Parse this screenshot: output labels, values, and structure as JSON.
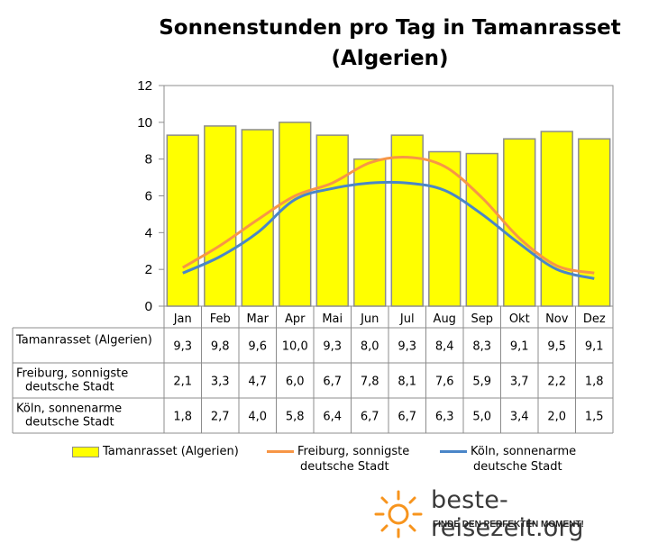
{
  "title_line1": "Sonnenstunden pro Tag in Tamanrasset",
  "title_line2": "(Algerien)",
  "brand": {
    "name": "beste-reisezeit.org",
    "tagline": "FINDE DEN PERFEKTEN MOMENT!"
  },
  "colors": {
    "bar_fill": "#ffff00",
    "bar_stroke": "#8c8c8c",
    "freiburg": "#f79646",
    "koeln": "#4a86c8",
    "logo": "#f7941d"
  },
  "chart_data": {
    "type": "bar",
    "categories": [
      "Jan",
      "Feb",
      "Mar",
      "Apr",
      "Mai",
      "Jun",
      "Jul",
      "Aug",
      "Sep",
      "Okt",
      "Nov",
      "Dez"
    ],
    "ylim": [
      0,
      12
    ],
    "yticks": [
      "0",
      "2",
      "4",
      "6",
      "8",
      "10",
      "12"
    ],
    "grid": false,
    "legend_position": "bottom",
    "series": [
      {
        "name": "Tamanrasset (Algerien)",
        "type": "bar",
        "values": [
          9.3,
          9.8,
          9.6,
          10.0,
          9.3,
          8.0,
          9.3,
          8.4,
          8.3,
          9.1,
          9.5,
          9.1
        ],
        "labels": [
          "9,3",
          "9,8",
          "9,6",
          "10,0",
          "9,3",
          "8,0",
          "9,3",
          "8,4",
          "8,3",
          "9,1",
          "9,5",
          "9,1"
        ]
      },
      {
        "name": "Freiburg, sonnigste deutsche Stadt",
        "type": "line",
        "values": [
          2.1,
          3.3,
          4.7,
          6.0,
          6.7,
          7.8,
          8.1,
          7.6,
          5.9,
          3.7,
          2.2,
          1.8
        ],
        "labels": [
          "2,1",
          "3,3",
          "4,7",
          "6,0",
          "6,7",
          "7,8",
          "8,1",
          "7,6",
          "5,9",
          "3,7",
          "2,2",
          "1,8"
        ]
      },
      {
        "name": "Köln, sonnenarme deutsche Stadt",
        "type": "line",
        "values": [
          1.8,
          2.7,
          4.0,
          5.8,
          6.4,
          6.7,
          6.7,
          6.3,
          5.0,
          3.4,
          2.0,
          1.5
        ],
        "labels": [
          "1,8",
          "2,7",
          "4,0",
          "5,8",
          "6,4",
          "6,7",
          "6,7",
          "6,3",
          "5,0",
          "3,4",
          "2,0",
          "1,5"
        ]
      }
    ],
    "table_row_labels": [
      [
        "Tamanrasset (Algerien)"
      ],
      [
        "Freiburg, sonnigste",
        "deutsche Stadt"
      ],
      [
        "Köln, sonnenarme",
        "deutsche Stadt"
      ]
    ],
    "legend_labels": [
      [
        "Tamanrasset (Algerien)"
      ],
      [
        "Freiburg, sonnigste",
        "deutsche Stadt"
      ],
      [
        "Köln, sonnenarme",
        "deutsche Stadt"
      ]
    ]
  }
}
